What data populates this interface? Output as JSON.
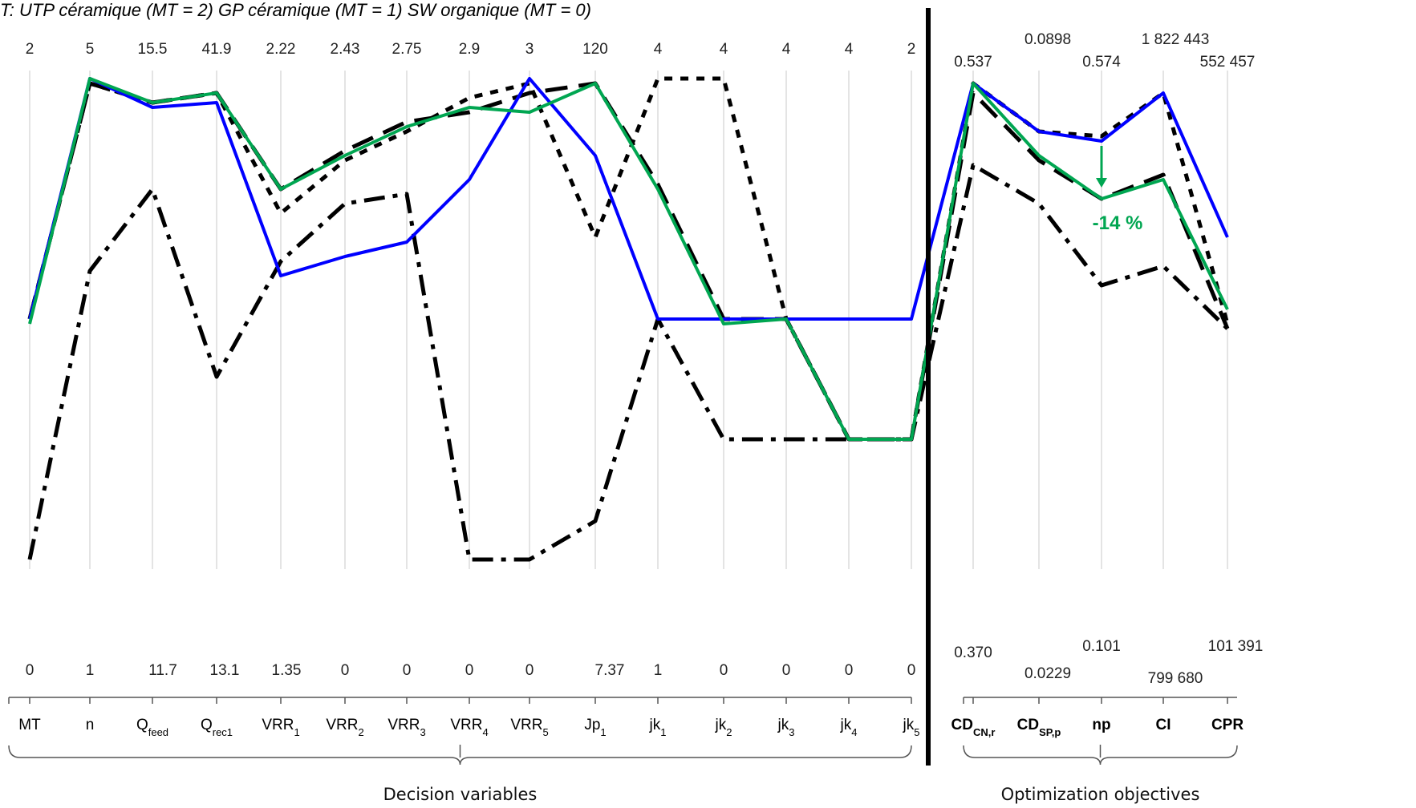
{
  "caption": "T: UTP céramique (MT = 2) GP céramique (MT = 1) SW organique (MT = 0)",
  "chart_data": {
    "type": "line",
    "subtype": "parallel-coordinates",
    "axes": [
      {
        "label": "MT",
        "sub": "",
        "max_label": "2",
        "min_label": "0",
        "group": "decision"
      },
      {
        "label": "n",
        "sub": "",
        "max_label": "5",
        "min_label": "1",
        "group": "decision"
      },
      {
        "label": "Q",
        "sub": "feed",
        "max_label": "15.5",
        "min_label": "11.7",
        "group": "decision"
      },
      {
        "label": "Q",
        "sub": "rec1",
        "max_label": "41.9",
        "min_label": "13.1",
        "group": "decision"
      },
      {
        "label": "VRR",
        "sub": "1",
        "max_label": "2.22",
        "min_label": "1.35",
        "group": "decision"
      },
      {
        "label": "VRR",
        "sub": "2",
        "max_label": "2.43",
        "min_label": "0",
        "group": "decision"
      },
      {
        "label": "VRR",
        "sub": "3",
        "max_label": "2.75",
        "min_label": "0",
        "group": "decision"
      },
      {
        "label": "VRR",
        "sub": "4",
        "max_label": "2.9",
        "min_label": "0",
        "group": "decision"
      },
      {
        "label": "VRR",
        "sub": "5",
        "max_label": "3",
        "min_label": "0",
        "group": "decision"
      },
      {
        "label": "Jp",
        "sub": "1",
        "max_label": "120",
        "min_label": "7.37",
        "group": "decision"
      },
      {
        "label": "jk",
        "sub": "1",
        "max_label": "4",
        "min_label": "1",
        "group": "decision"
      },
      {
        "label": "jk",
        "sub": "2",
        "max_label": "4",
        "min_label": "0",
        "group": "decision"
      },
      {
        "label": "jk",
        "sub": "3",
        "max_label": "4",
        "min_label": "0",
        "group": "decision"
      },
      {
        "label": "jk",
        "sub": "4",
        "max_label": "4",
        "min_label": "0",
        "group": "decision"
      },
      {
        "label": "jk",
        "sub": "5",
        "max_label": "2",
        "min_label": "0",
        "group": "decision"
      },
      {
        "label": "CD",
        "sub": "CN,r",
        "max_label": "0.537",
        "min_label": "0.370",
        "group": "objective"
      },
      {
        "label": "CD",
        "sub": "SP,p",
        "max_label": "0.0898",
        "min_label": "0.0229",
        "group": "objective"
      },
      {
        "label": "np",
        "sub": "",
        "max_label": "0.574",
        "min_label": "0.101",
        "group": "objective"
      },
      {
        "label": "CI",
        "sub": "",
        "max_label": "1 822 443",
        "min_label": "799 680",
        "group": "objective"
      },
      {
        "label": "CPR",
        "sub": "",
        "max_label": "552 457",
        "min_label": "101 391",
        "group": "objective"
      }
    ],
    "ylim": [
      0,
      1
    ],
    "series": [
      {
        "style": "solid",
        "color": "#0000ff",
        "values": [
          0.5,
          1.0,
          0.94,
          0.95,
          0.59,
          0.63,
          0.66,
          0.79,
          1.0,
          0.84,
          0.5,
          0.5,
          0.5,
          0.5,
          0.5,
          0.99,
          0.89,
          0.87,
          0.97,
          0.67
        ]
      },
      {
        "style": "solid",
        "color": "#00a651",
        "values": [
          0.49,
          1.0,
          0.95,
          0.97,
          0.77,
          0.84,
          0.9,
          0.94,
          0.93,
          0.99,
          0.77,
          0.49,
          0.5,
          0.25,
          0.25,
          0.99,
          0.84,
          0.75,
          0.79,
          0.52
        ]
      },
      {
        "style": "long-dash",
        "color": "#000000",
        "values": [
          0.5,
          0.99,
          0.95,
          0.97,
          0.77,
          0.85,
          0.91,
          0.93,
          0.97,
          0.99,
          0.78,
          0.5,
          0.5,
          0.25,
          0.25,
          0.97,
          0.83,
          0.75,
          0.8,
          0.48
        ]
      },
      {
        "style": "short-dash",
        "color": "#000000",
        "values": [
          0.5,
          0.99,
          0.95,
          0.97,
          0.72,
          0.83,
          0.89,
          0.96,
          0.99,
          0.67,
          1.0,
          1.0,
          0.5,
          0.25,
          0.25,
          0.99,
          0.89,
          0.88,
          0.97,
          0.49
        ]
      },
      {
        "style": "dash-dot",
        "color": "#000000",
        "values": [
          0.0,
          0.6,
          0.77,
          0.38,
          0.62,
          0.74,
          0.76,
          0.0,
          0.0,
          0.08,
          0.5,
          0.25,
          0.25,
          0.25,
          0.25,
          0.82,
          0.74,
          0.57,
          0.61,
          0.48
        ]
      }
    ],
    "annotation": {
      "text": "-14 %",
      "axis_index": 17,
      "from_value": 0.87,
      "to_value": 0.77,
      "color": "#00a651"
    },
    "groups": [
      {
        "label": "Decision variables",
        "from": 0,
        "to": 14
      },
      {
        "label": "Optimization objectives",
        "from": 15,
        "to": 19
      }
    ],
    "grid": true,
    "legend": "none"
  }
}
